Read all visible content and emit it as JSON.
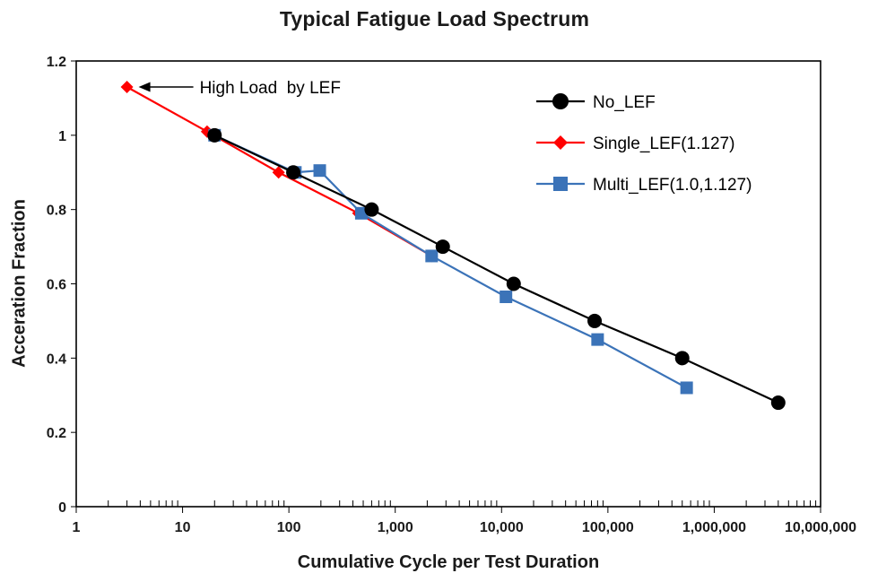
{
  "chart_data": {
    "type": "line",
    "title": "Typical Fatigue Load Spectrum",
    "xlabel": "Cumulative Cycle per Test Duration",
    "ylabel": "Acceration Fraction",
    "x_scale": "log",
    "xlim": [
      1,
      10000000
    ],
    "ylim": [
      0,
      1.2
    ],
    "grid": false,
    "legend_position": "top-right-inside",
    "x_ticks": [
      {
        "value": 1,
        "label": "1"
      },
      {
        "value": 10,
        "label": "10"
      },
      {
        "value": 100,
        "label": "100"
      },
      {
        "value": 1000,
        "label": "1,000"
      },
      {
        "value": 10000,
        "label": "10,000"
      },
      {
        "value": 100000,
        "label": "100,000"
      },
      {
        "value": 1000000,
        "label": "1,000,000"
      },
      {
        "value": 10000000,
        "label": "10,000,000"
      }
    ],
    "y_ticks": [
      {
        "value": 0,
        "label": "0"
      },
      {
        "value": 0.2,
        "label": "0.2"
      },
      {
        "value": 0.4,
        "label": "0.4"
      },
      {
        "value": 0.6,
        "label": "0.6"
      },
      {
        "value": 0.8,
        "label": "0.8"
      },
      {
        "value": 1,
        "label": "1"
      },
      {
        "value": 1.2,
        "label": "1.2"
      }
    ],
    "annotation": {
      "text": "High Load  by LEF",
      "x": 3,
      "y": 1.13,
      "arrow": "left"
    },
    "series": [
      {
        "name": "No_LEF",
        "color": "#000000",
        "marker": "circle",
        "points": [
          [
            20,
            1.0
          ],
          [
            110,
            0.9
          ],
          [
            600,
            0.8
          ],
          [
            2800,
            0.7
          ],
          [
            13000,
            0.6
          ],
          [
            75000,
            0.5
          ],
          [
            500000,
            0.4
          ],
          [
            4000000,
            0.28
          ]
        ]
      },
      {
        "name": "Single_LEF(1.127)",
        "color": "#ff0000",
        "marker": "diamond",
        "points": [
          [
            3,
            1.13
          ],
          [
            17,
            1.01
          ],
          [
            80,
            0.9
          ],
          [
            450,
            0.79
          ],
          [
            2200,
            0.675
          ]
        ]
      },
      {
        "name": "Multi_LEF(1.0,1.127)",
        "color": "#3b73b8",
        "marker": "square",
        "points": [
          [
            20,
            1.0
          ],
          [
            115,
            0.9
          ],
          [
            195,
            0.905
          ],
          [
            480,
            0.79
          ],
          [
            2200,
            0.675
          ],
          [
            11000,
            0.565
          ],
          [
            80000,
            0.45
          ],
          [
            550000,
            0.32
          ]
        ]
      }
    ]
  }
}
